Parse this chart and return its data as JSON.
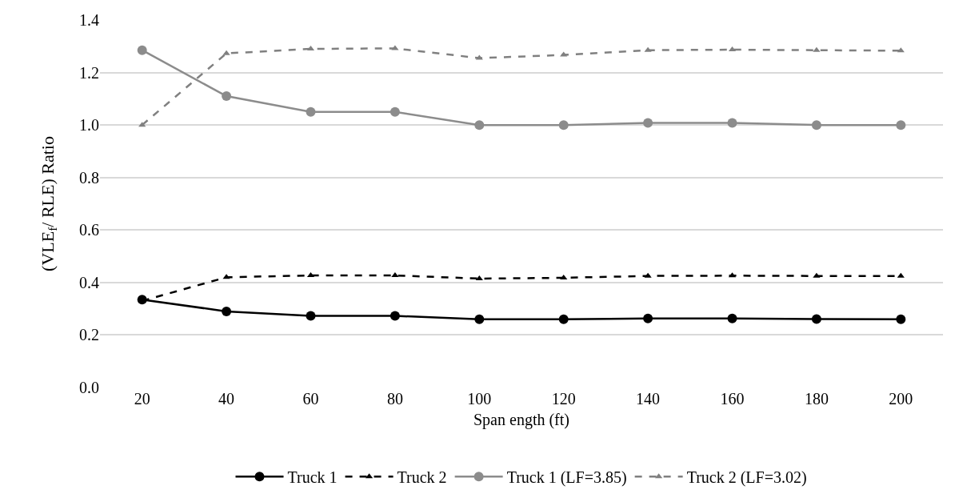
{
  "chart_data": {
    "type": "line",
    "xlabel": "Span ength (ft)",
    "ylabel": "(VLE$_{f}$/ RLE) Ratio",
    "categories": [
      "20",
      "40",
      "60",
      "80",
      "100",
      "120",
      "140",
      "160",
      "180",
      "200"
    ],
    "ylim": [
      0,
      1.4
    ],
    "yticks": [
      {
        "value": 0,
        "label": "0.0"
      },
      {
        "value": 0.2,
        "label": "0.2"
      },
      {
        "value": 0.4,
        "label": "0.4"
      },
      {
        "value": 0.6,
        "label": "0.6"
      },
      {
        "value": 0.8,
        "label": "0.8"
      },
      {
        "value": 1,
        "label": "1.0"
      },
      {
        "value": 1.2,
        "label": "1.2"
      },
      {
        "value": 1.4,
        "label": "1.4"
      }
    ],
    "grid": "y",
    "legend": "bottom",
    "series": [
      {
        "name": "Truck 1",
        "color": "#000000",
        "marker": "circle",
        "line_style": "solid",
        "values": [
          0.335,
          0.29,
          0.273,
          0.273,
          0.26,
          0.26,
          0.263,
          0.263,
          0.261,
          0.26
        ]
      },
      {
        "name": "Truck 2",
        "color": "#000000",
        "marker": "triangle",
        "line_style": "dashed",
        "values": [
          0.33,
          0.42,
          0.427,
          0.427,
          0.415,
          0.418,
          0.425,
          0.426,
          0.425,
          0.425
        ]
      },
      {
        "name": "Truck 1 (LF=3.85)",
        "color": "#8c8c8c",
        "marker": "circle",
        "line_style": "solid",
        "values": [
          1.285,
          1.11,
          1.05,
          1.05,
          1.0,
          1.0,
          1.008,
          1.008,
          1.0,
          1.0
        ]
      },
      {
        "name": "Truck 2 (LF=3.02)",
        "color": "#808080",
        "marker": "triangle",
        "line_style": "dashed",
        "values": [
          1.0,
          1.273,
          1.29,
          1.292,
          1.255,
          1.267,
          1.285,
          1.287,
          1.285,
          1.283
        ]
      }
    ]
  }
}
